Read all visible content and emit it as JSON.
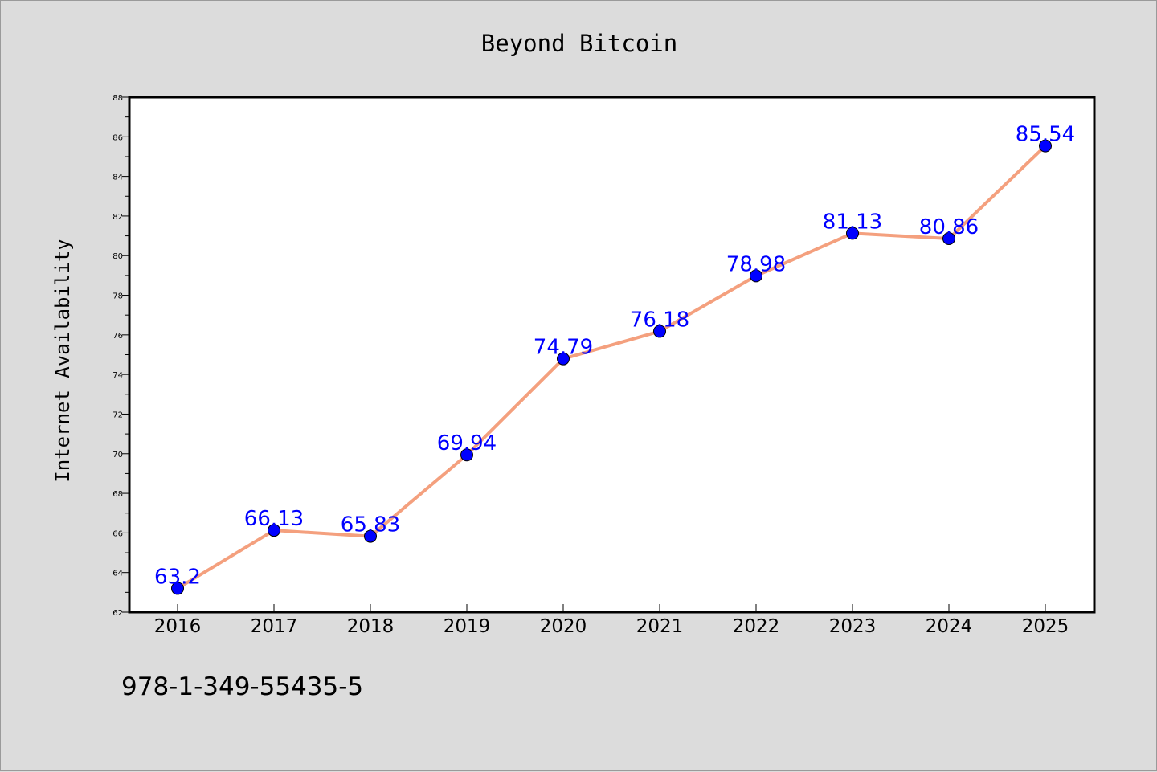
{
  "chart_data": {
    "type": "line",
    "title": "Beyond Bitcoin",
    "xlabel": "",
    "ylabel": "Internet Availability",
    "categories": [
      "2016",
      "2017",
      "2018",
      "2019",
      "2020",
      "2021",
      "2022",
      "2023",
      "2024",
      "2025"
    ],
    "series": [
      {
        "values": [
          63.2,
          66.13,
          65.83,
          69.94,
          74.79,
          76.18,
          78.98,
          81.13,
          80.86,
          85.54
        ],
        "labels": [
          "63.2",
          "66.13",
          "65.83",
          "69.94",
          "74.79",
          "76.18",
          "78.98",
          "81.13",
          "80.86",
          "85.54"
        ],
        "line_color": "#f4a07e",
        "marker_color": "#0000ff"
      }
    ],
    "ylim": [
      62,
      88
    ],
    "yticks": [
      "62",
      "64",
      "66",
      "68",
      "70",
      "72",
      "74",
      "76",
      "78",
      "80",
      "82",
      "84",
      "86",
      "88"
    ],
    "grid": false,
    "legend": "none"
  },
  "footer": {
    "isbn": "978-1-349-55435-5"
  },
  "colors": {
    "background": "#dcdcdc",
    "plot_background": "#ffffff",
    "label_color": "#0000ff"
  }
}
